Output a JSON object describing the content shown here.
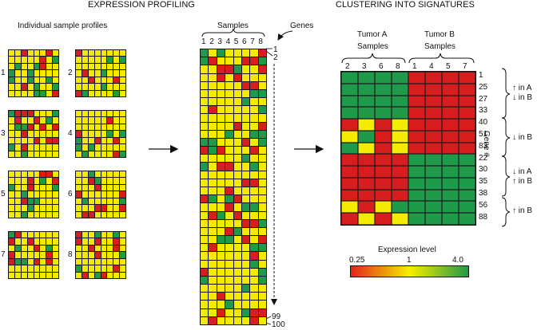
{
  "left": {
    "title": "EXPRESSION PROFILING",
    "subtitle": "Individual sample profiles",
    "samples": [
      "1",
      "2",
      "3",
      "4",
      "5",
      "6",
      "7",
      "8"
    ]
  },
  "middle": {
    "samples_label": "Samples",
    "genes_label": "Genes",
    "columns": [
      "1",
      "2",
      "3",
      "4",
      "5",
      "6",
      "7",
      "8"
    ],
    "row_top_1": "1",
    "row_top_2": "2",
    "row_bottom_1": "99",
    "row_bottom_2": "100"
  },
  "right": {
    "title": "CLUSTERING INTO SIGNATURES",
    "group_a": "Tumor A",
    "group_b": "Tumor B",
    "samples_word": "Samples",
    "columns": [
      "2",
      "3",
      "6",
      "8",
      "1",
      "4",
      "5",
      "7"
    ],
    "genes": [
      "1",
      "25",
      "27",
      "33",
      "40",
      "51",
      "83",
      "22",
      "30",
      "35",
      "38",
      "56",
      "88"
    ],
    "gene_axis": "Gene #",
    "brackets": [
      "↑ in A\n↓ in B",
      "↓ in B",
      "↓ in A\n↑ in B",
      "↑ in B"
    ],
    "bracket_lines": [
      [
        "↑ in A",
        "↓ in B"
      ],
      [
        "↓ in B"
      ],
      [
        "↓ in A",
        "↑ in B"
      ],
      [
        "↑ in B"
      ]
    ],
    "signature": [
      "gggg rrrr",
      "gggg rrrr",
      "gggg rrrr",
      "gggg rrrr",
      "ryry rrrr",
      "ygry rrrr",
      "gyry rrrr",
      "rrrr gggg",
      "rrrr gggg",
      "rrrr gggg",
      "rrrr gggg",
      "yryg gggg",
      "ryry gggg"
    ]
  },
  "legend": {
    "title": "Expression level",
    "min": "0.25",
    "mid": "1",
    "max": "4.0",
    "colors": [
      "#e3241b",
      "#f7ee00",
      "#1f9a46"
    ]
  }
}
